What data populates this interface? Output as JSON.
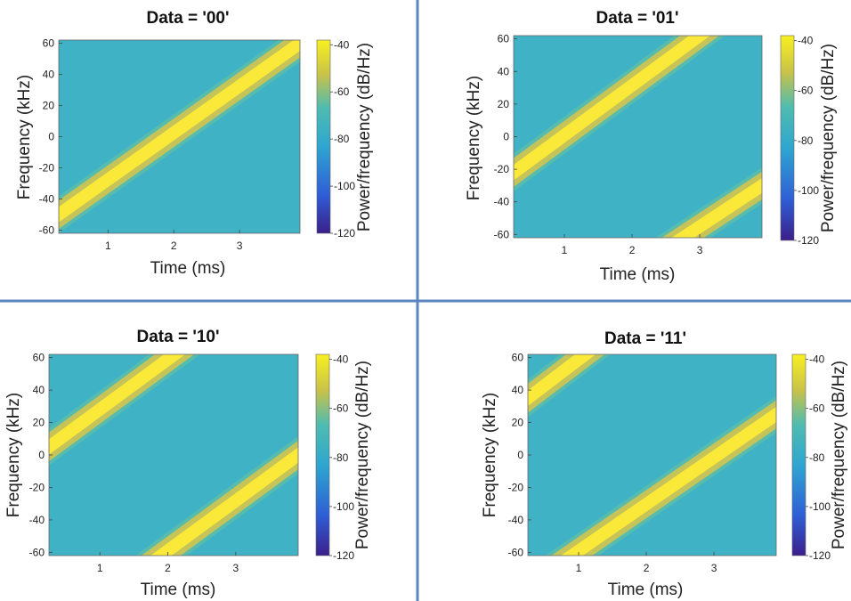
{
  "chart_data": [
    {
      "type": "heatmap",
      "title": "Data = '00'",
      "xlabel": "Time (ms)",
      "ylabel": "Frequency (kHz)",
      "colorbar_label": "Power/frequency (dB/Hz)",
      "xlim": [
        0.25,
        3.92
      ],
      "ylim": [
        -62,
        62
      ],
      "xticks": [
        1,
        2,
        3
      ],
      "yticks": [
        -60,
        -40,
        -20,
        0,
        20,
        40,
        60
      ],
      "clim": [
        -120,
        -38
      ],
      "cticks": [
        -120,
        -100,
        -80,
        -60,
        -40
      ],
      "chirps": [
        {
          "start_time_ms": 0.25,
          "start_freq_khz": -50,
          "end_time_ms": 3.92,
          "end_freq_khz": 60
        }
      ]
    },
    {
      "type": "heatmap",
      "title": "Data = '01'",
      "xlabel": "Time (ms)",
      "ylabel": "Frequency (kHz)",
      "colorbar_label": "Power/frequency (dB/Hz)",
      "xlim": [
        0.25,
        3.92
      ],
      "ylim": [
        -62,
        62
      ],
      "xticks": [
        1,
        2,
        3
      ],
      "yticks": [
        -60,
        -40,
        -20,
        0,
        20,
        40,
        60
      ],
      "clim": [
        -120,
        -38
      ],
      "cticks": [
        -120,
        -100,
        -80,
        -60,
        -40
      ],
      "chirps": [
        {
          "start_time_ms": 0.25,
          "start_freq_khz": -22,
          "end_time_ms": 3.0,
          "end_freq_khz": 62
        },
        {
          "start_time_ms": 2.75,
          "start_freq_khz": -62,
          "end_time_ms": 3.92,
          "end_freq_khz": -30
        }
      ]
    },
    {
      "type": "heatmap",
      "title": "Data = '10'",
      "xlabel": "Time (ms)",
      "ylabel": "Frequency (kHz)",
      "colorbar_label": "Power/frequency (dB/Hz)",
      "xlim": [
        0.25,
        3.92
      ],
      "ylim": [
        -62,
        62
      ],
      "xticks": [
        1,
        2,
        3
      ],
      "yticks": [
        -60,
        -40,
        -20,
        0,
        20,
        40,
        60
      ],
      "clim": [
        -120,
        -38
      ],
      "cticks": [
        -120,
        -100,
        -80,
        -60,
        -40
      ],
      "chirps": [
        {
          "start_time_ms": 0.25,
          "start_freq_khz": 5,
          "end_time_ms": 2.1,
          "end_freq_khz": 62
        },
        {
          "start_time_ms": 1.9,
          "start_freq_khz": -62,
          "end_time_ms": 3.92,
          "end_freq_khz": 0
        }
      ]
    },
    {
      "type": "heatmap",
      "title": "Data = '11'",
      "xlabel": "Time (ms)",
      "ylabel": "Frequency (kHz)",
      "colorbar_label": "Power/frequency (dB/Hz)",
      "xlim": [
        0.25,
        3.92
      ],
      "ylim": [
        -62,
        62
      ],
      "xticks": [
        1,
        2,
        3
      ],
      "yticks": [
        -60,
        -40,
        -20,
        0,
        20,
        40,
        60
      ],
      "clim": [
        -120,
        -38
      ],
      "cticks": [
        -120,
        -100,
        -80,
        -60,
        -40
      ],
      "chirps": [
        {
          "start_time_ms": 0.25,
          "start_freq_khz": 35,
          "end_time_ms": 1.1,
          "end_freq_khz": 62
        },
        {
          "start_time_ms": 0.9,
          "start_freq_khz": -62,
          "end_time_ms": 3.92,
          "end_freq_khz": 25
        }
      ]
    }
  ],
  "colors": {
    "background_field": "#3fb2c6",
    "band_edge": "#6cc49a",
    "band_mid": "#d9c64a",
    "band_core": "#fbe93a",
    "divider": "#5b86c0"
  }
}
